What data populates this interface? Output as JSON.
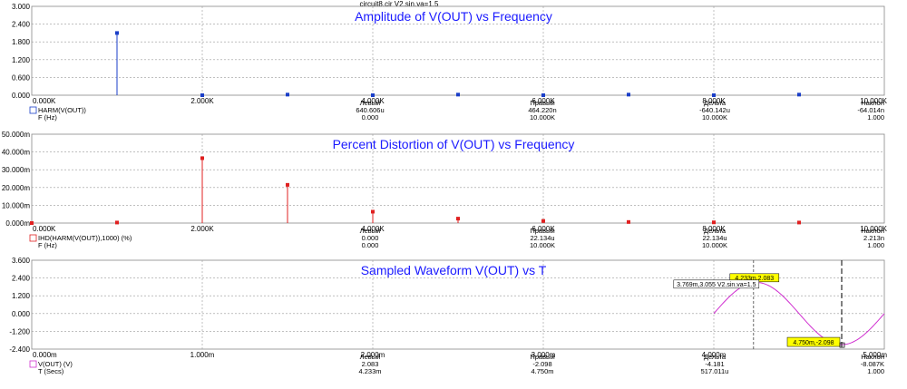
{
  "window_title": "circuit8.cir V2.sin.va=1.5",
  "colors": {
    "title": "#1a1aff",
    "harm": "#1a3ec8",
    "ihd": "#e02020",
    "wave": "#d030d0",
    "cursor_box": "#ffff00"
  },
  "chart_data": [
    {
      "type": "bar",
      "title": "Amplitude of V(OUT) vs Frequency",
      "xlim": [
        0,
        10000
      ],
      "ylim": [
        0,
        3
      ],
      "x_ticks": [
        "0.000K",
        "2.000K",
        "4.000K",
        "6.000K",
        "8.000K",
        "10.000K"
      ],
      "y_ticks": [
        "0.000",
        "0.600",
        "1.200",
        "1.800",
        "2.400",
        "3.000"
      ],
      "series": [
        {
          "name": "HARM(V(OUT))",
          "x": [
            1000,
            2000,
            3000,
            4000,
            5000,
            6000,
            7000,
            8000,
            9000
          ],
          "values": [
            2.1,
            0.0,
            0.02,
            0.0,
            0.02,
            0.0,
            0.02,
            0.0,
            0.02
          ]
        }
      ],
      "legend": {
        "trace_label": "HARM(V(OUT))",
        "axis_label": "F (Hz)",
        "columns": [
          "Левый",
          "Правый",
          "Дельта",
          "Наклон"
        ],
        "row_y": [
          "640.606u",
          "464.220n",
          "-640.142u",
          "-64.014n"
        ],
        "row_x": [
          "0.000",
          "10.000K",
          "10.000K",
          "1.000"
        ]
      }
    },
    {
      "type": "bar",
      "title": "Percent Distortion of V(OUT) vs Frequency",
      "xlim": [
        0,
        10000
      ],
      "ylim": [
        0,
        50
      ],
      "x_ticks": [
        "0.000K",
        "2.000K",
        "4.000K",
        "6.000K",
        "8.000K",
        "10.000K"
      ],
      "y_ticks": [
        "0.000m",
        "10.000m",
        "20.000m",
        "30.000m",
        "40.000m",
        "50.000m"
      ],
      "series": [
        {
          "name": "IHD(HARM(V(OUT)),1000) (%)",
          "x": [
            0,
            1000,
            2000,
            3000,
            4000,
            5000,
            6000,
            7000,
            8000,
            9000
          ],
          "values": [
            0,
            0.3,
            36.5,
            21.5,
            6.4,
            2.5,
            1.2,
            0.6,
            0.4,
            0.3
          ]
        }
      ],
      "legend": {
        "trace_label": "IHD(HARM(V(OUT)),1000) (%)",
        "axis_label": "F (Hz)",
        "columns": [
          "Левый",
          "Правый",
          "Дельта",
          "Наклон"
        ],
        "row_y": [
          "0.000",
          "22.134u",
          "22.134u",
          "2.213n"
        ],
        "row_x": [
          "0.000",
          "10.000K",
          "10.000K",
          "1.000"
        ]
      }
    },
    {
      "type": "line",
      "title": "Sampled Waveform  V(OUT) vs T",
      "xlim": [
        0,
        5
      ],
      "ylim": [
        -2.4,
        3.6
      ],
      "x_ticks": [
        "0.000m",
        "1.000m",
        "2.000m",
        "3.000m",
        "4.000m",
        "5.000m"
      ],
      "y_ticks": [
        "-2.400",
        "-1.200",
        "0.000",
        "1.200",
        "2.400",
        "3.600"
      ],
      "wave": {
        "t_start": 4.0,
        "t_end": 5.0,
        "amplitude": 2.1,
        "period": 1.0
      },
      "cursors": [
        {
          "t": 4.233,
          "label": "4.233m,2.083"
        },
        {
          "t": 4.75,
          "label": "4.750m,-2.098"
        }
      ],
      "tooltip": "3.769m,3.055 V2.sin.va=1.5",
      "legend": {
        "trace_label": "V(OUT) (V)",
        "axis_label": "T (Secs)",
        "columns": [
          "Левый",
          "Правый",
          "Дельта",
          "Наклон"
        ],
        "row_y": [
          "2.083",
          "-2.098",
          "-4.181",
          "-8.087K"
        ],
        "row_x": [
          "4.233m",
          "4.750m",
          "517.011u",
          "1.000"
        ]
      }
    }
  ]
}
